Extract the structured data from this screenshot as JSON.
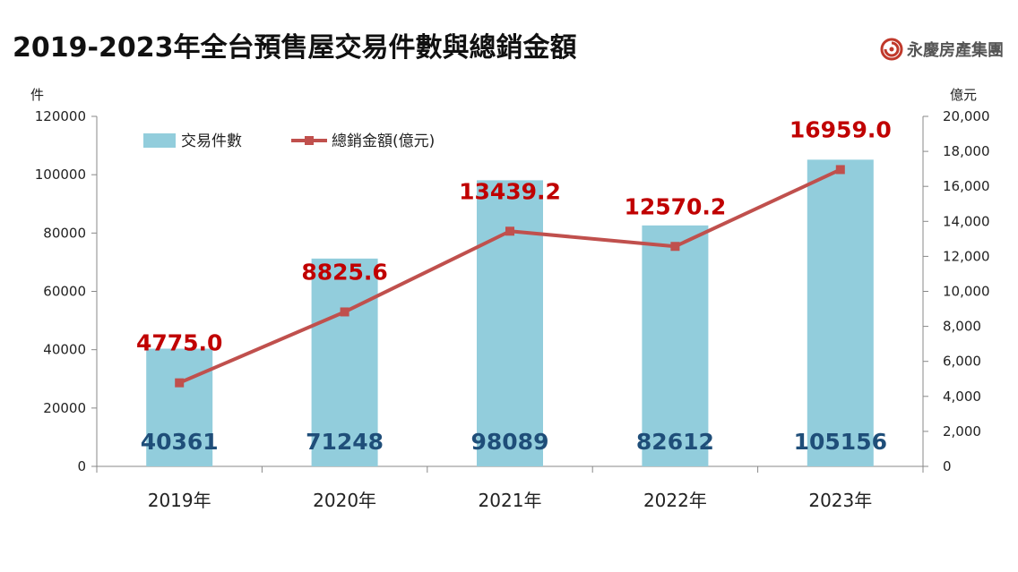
{
  "header": {
    "title": "2019-2023年全台預售屋交易件數與總銷金額"
  },
  "brand": {
    "name": "永慶房產集團",
    "logo_icon": "swirl-logo-icon",
    "color": "#c0392b"
  },
  "chart_data": {
    "type": "bar+line",
    "categories": [
      "2019年",
      "2020年",
      "2021年",
      "2022年",
      "2023年"
    ],
    "left_axis": {
      "unit": "件",
      "range": [
        0,
        120000
      ],
      "ticks": [
        "0",
        "20000",
        "40000",
        "60000",
        "80000",
        "100000",
        "120000"
      ]
    },
    "right_axis": {
      "unit": "億元",
      "range": [
        0,
        20000
      ],
      "ticks": [
        "0",
        "2,000",
        "4,000",
        "6,000",
        "8,000",
        "10,000",
        "12,000",
        "14,000",
        "16,000",
        "18,000",
        "20,000"
      ]
    },
    "series": [
      {
        "name": "交易件數",
        "kind": "bar",
        "axis": "left",
        "color": "#92cddc",
        "label_color": "#1f4e79",
        "values": [
          40361,
          71248,
          98089,
          82612,
          105156
        ],
        "labels": [
          "40361",
          "71248",
          "98089",
          "82612",
          "105156"
        ]
      },
      {
        "name": "總銷金額(億元)",
        "kind": "line",
        "axis": "right",
        "color": "#c0504d",
        "label_color": "#c00000",
        "values": [
          4775.0,
          8825.6,
          13439.2,
          12570.2,
          16959.0
        ],
        "labels": [
          "4775.0",
          "8825.6",
          "13439.2",
          "12570.2",
          "16959.0"
        ]
      }
    ],
    "legend_position": "top-left",
    "grid": false
  }
}
